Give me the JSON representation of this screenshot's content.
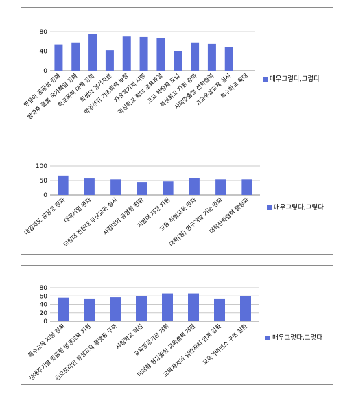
{
  "colors": {
    "bar": "#5b6fd9",
    "grid": "#c9c9c9",
    "axis": "#8a8a8a"
  },
  "chart_data": [
    {
      "type": "bar",
      "categories": [
        "영유아 공공성 강화",
        "방과후 돌봄 국가책임 강화",
        "학교폭력 대책 강화",
        "학생의 정서지원",
        "학업성취 기초학력 보장",
        "자유학기제 시행",
        "혁신학교 확대 교육과정",
        "고교 학점제 도입",
        "특성화고 지원 강화",
        "사회맞춤형 산학협력",
        "고교무상교육 실시",
        "특수학교 확대"
      ],
      "values": [
        54,
        58,
        75,
        42,
        70,
        69,
        67,
        40,
        58,
        55,
        48,
        0
      ],
      "yticks": [
        0,
        40,
        80
      ],
      "ylim": [
        0,
        90
      ],
      "grid": true,
      "legend": {
        "position": "right",
        "label": "매우그렇다,그렇다"
      },
      "title": "",
      "xlabel": "",
      "ylabel": ""
    },
    {
      "type": "bar",
      "categories": [
        "대입제도 공정성 강화",
        "대학서열 완화",
        "국립대 전문대 무상교육 실시",
        "사립대의 공영형 전환",
        "지방대 재정 지원",
        "고등 직업교육 강화",
        "대학(원) 연구개발 기능 강화",
        "대학산학협력 활성화"
      ],
      "values": [
        67,
        57,
        54,
        45,
        47,
        59,
        54,
        54
      ],
      "yticks": [
        0,
        50,
        100
      ],
      "ylim": [
        0,
        100
      ],
      "grid": true,
      "legend": {
        "position": "right",
        "label": "매우그렇다,그렇다"
      },
      "title": "",
      "xlabel": "",
      "ylabel": ""
    },
    {
      "type": "bar",
      "categories": [
        "특수교육 지원 강화",
        "생애주기별 맞춤형 평생교육 지원",
        "온오프라인 평생교육 플랫폼 구축",
        "사립학교 혁신",
        "교육행정기관 개혁",
        "미래형 현장중심 교육정책 개편",
        "교육자치와 일반자치 연계 강화",
        "교육거버넌스 구조 전환"
      ],
      "values": [
        56,
        54,
        57,
        60,
        66,
        66,
        54,
        60
      ],
      "yticks": [
        0,
        20,
        40,
        60,
        80
      ],
      "ylim": [
        0,
        80
      ],
      "grid": true,
      "legend": {
        "position": "right",
        "label": "매우그렇다,그렇다"
      },
      "title": "",
      "xlabel": "",
      "ylabel": ""
    }
  ]
}
